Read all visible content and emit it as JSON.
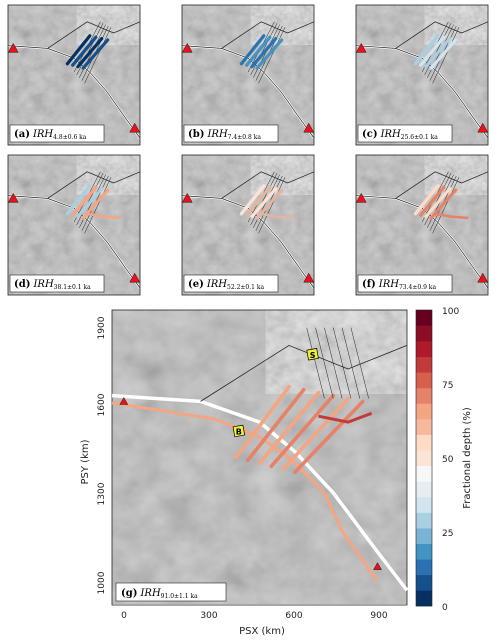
{
  "panels": [
    {
      "letter": "a",
      "age": "4.8±0.6 ka"
    },
    {
      "letter": "b",
      "age": "7.4±0.8 ka"
    },
    {
      "letter": "c",
      "age": "25.6±0.1 ka"
    },
    {
      "letter": "d",
      "age": "38.1±0.1 ka"
    },
    {
      "letter": "e",
      "age": "52.2±0.1 ka"
    },
    {
      "letter": "f",
      "age": "73.4±0.9 ka"
    },
    {
      "letter": "g",
      "age": "91.0±1.1 ka"
    }
  ],
  "layer_prefix": "IRH",
  "main_map": {
    "x_axis": {
      "label": "PSX (km)",
      "ticks": [
        "0",
        "300",
        "600",
        "900"
      ]
    },
    "y_axis": {
      "label": "PSY (km)",
      "ticks": [
        "1900",
        "1600",
        "1300",
        "1000"
      ]
    },
    "site_markers": [
      "B",
      "S"
    ]
  },
  "colorbar": {
    "label": "Fractional depth (%)",
    "ticks": [
      "100",
      "75",
      "50",
      "25",
      "0"
    ],
    "colors": [
      "#053061",
      "#15508d",
      "#2a72b2",
      "#4393c3",
      "#7bb3d5",
      "#a9cfe3",
      "#d1e5f0",
      "#e6eef4",
      "#f7f7f7",
      "#fbe3d6",
      "#fddbc7",
      "#f7b99d",
      "#f4a582",
      "#e58267",
      "#d6604d",
      "#c33a3a",
      "#b2182b",
      "#8c0d25",
      "#67001f"
    ]
  },
  "colors": {
    "marker": "#e8121c",
    "flightline": "#222222",
    "hillshade": "#a9a9a9"
  }
}
